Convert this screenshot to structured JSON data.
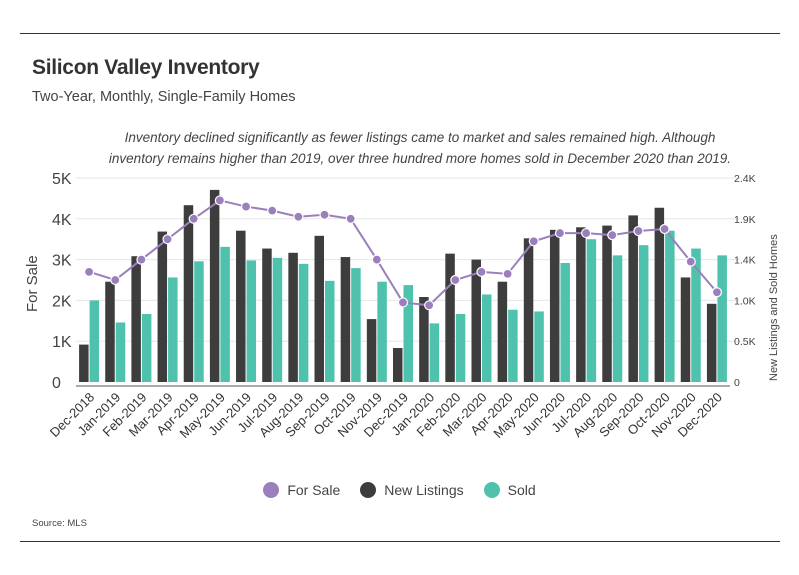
{
  "header": {
    "title": "Silicon Valley Inventory",
    "subtitle": "Two-Year, Monthly, Single-Family Homes",
    "annotation_line1": "Inventory declined significantly as fewer listings came to market and sales remained high. Although",
    "annotation_line2": "inventory remains higher than 2019, over three hundred more homes sold in December 2020 than 2019."
  },
  "source": "Source:  MLS",
  "colors": {
    "for_sale": "#9b7fbd",
    "new_listings": "#3d3d3d",
    "sold": "#4fc2ad"
  },
  "chart_data": {
    "type": "bar",
    "title": "Silicon Valley Inventory",
    "ylabel_left": "For Sale",
    "ylabel_right": "New Listings and Sold Homes",
    "y_left": {
      "range": [
        0,
        5000
      ],
      "ticks": [
        "0",
        "1K",
        "2K",
        "3K",
        "4K",
        "5K"
      ]
    },
    "y_right": {
      "range": [
        0,
        2400
      ],
      "ticks": [
        "0",
        "0.5K",
        "1.0K",
        "1.4K",
        "1.9K",
        "2.4K"
      ]
    },
    "categories": [
      "Dec-2018",
      "Jan-2019",
      "Feb-2019",
      "Mar-2019",
      "Apr-2019",
      "May-2019",
      "Jun-2019",
      "Jul-2019",
      "Aug-2019",
      "Sep-2019",
      "Oct-2019",
      "Nov-2019",
      "Dec-2019",
      "Jan-2020",
      "Feb-2020",
      "Mar-2020",
      "Apr-2020",
      "May-2020",
      "Jun-2020",
      "Jul-2020",
      "Aug-2020",
      "Sep-2020",
      "Oct-2020",
      "Nov-2020",
      "Dec-2020"
    ],
    "series": [
      {
        "name": "New Listings",
        "type": "bar",
        "axis": "right",
        "values": [
          440,
          1180,
          1480,
          1770,
          2080,
          2260,
          1780,
          1570,
          1520,
          1720,
          1470,
          740,
          400,
          1000,
          1510,
          1440,
          1180,
          1690,
          1790,
          1820,
          1840,
          1960,
          2050,
          1230,
          920
        ]
      },
      {
        "name": "Sold",
        "type": "bar",
        "axis": "right",
        "values": [
          960,
          700,
          800,
          1230,
          1420,
          1590,
          1430,
          1460,
          1390,
          1190,
          1340,
          1180,
          1140,
          690,
          800,
          1030,
          850,
          830,
          1400,
          1680,
          1490,
          1610,
          1780,
          1570,
          1490
        ]
      },
      {
        "name": "For Sale",
        "type": "line",
        "axis": "left",
        "values": [
          2700,
          2500,
          3000,
          3500,
          4000,
          4450,
          4300,
          4200,
          4050,
          4100,
          4000,
          3000,
          1950,
          1880,
          2500,
          2700,
          2650,
          3450,
          3650,
          3650,
          3600,
          3700,
          3750,
          2950,
          2200
        ]
      }
    ],
    "legend": [
      "For Sale",
      "New Listings",
      "Sold"
    ],
    "legend_position": "bottom"
  }
}
